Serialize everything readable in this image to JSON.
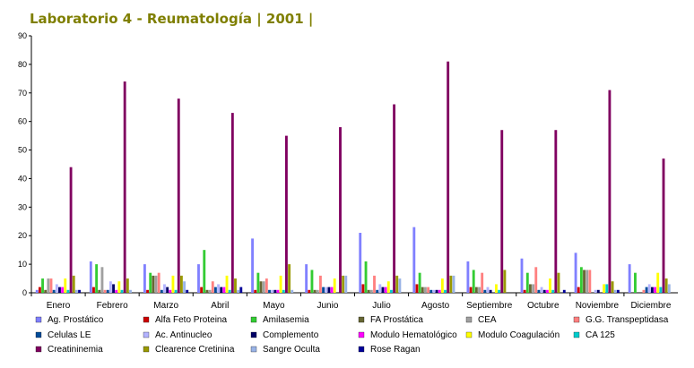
{
  "chart_data": {
    "type": "bar",
    "title": "Laboratorio 4 - Reumatología | 2001 |",
    "xlabel": "",
    "ylabel": "",
    "ylim": [
      0,
      90
    ],
    "yticks": [
      0,
      10,
      20,
      30,
      40,
      50,
      60,
      70,
      80,
      90
    ],
    "grid": false,
    "legend_position": "bottom",
    "categories": [
      "Enero",
      "Febrero",
      "Marzo",
      "Abril",
      "Mayo",
      "Junio",
      "Julio",
      "Agosto",
      "Septiembre",
      "Octubre",
      "Noviembre",
      "Diciembre"
    ],
    "series": [
      {
        "name": "Ag. Prostático",
        "color": "#8080ff",
        "values": [
          1,
          11,
          10,
          10,
          19,
          10,
          21,
          23,
          11,
          12,
          14,
          10
        ]
      },
      {
        "name": "Alfa Feto Proteina",
        "color": "#cc0000",
        "values": [
          2,
          2,
          1,
          2,
          1,
          1,
          3,
          3,
          2,
          1,
          2,
          0
        ]
      },
      {
        "name": "Amilasemia",
        "color": "#33cc33",
        "values": [
          5,
          10,
          7,
          15,
          7,
          8,
          11,
          7,
          8,
          7,
          9,
          7
        ]
      },
      {
        "name": "FA Prostática",
        "color": "#666633",
        "values": [
          1,
          1,
          6,
          1,
          4,
          1,
          1,
          2,
          2,
          3,
          8,
          0
        ]
      },
      {
        "name": "CEA",
        "color": "#a0a0a0",
        "values": [
          5,
          9,
          6,
          1,
          4,
          1,
          1,
          2,
          2,
          3,
          8,
          0
        ]
      },
      {
        "name": "G.G. Transpeptidasa",
        "color": "#ff8080",
        "values": [
          5,
          1,
          7,
          4,
          5,
          6,
          6,
          2,
          7,
          9,
          8,
          1
        ]
      },
      {
        "name": "Celulas LE",
        "color": "#004c99",
        "values": [
          1,
          1,
          1,
          2,
          1,
          2,
          1,
          1,
          1,
          1,
          0,
          2
        ]
      },
      {
        "name": "Ac. Antinucleo",
        "color": "#b3b3ff",
        "values": [
          3,
          4,
          3,
          3,
          1,
          2,
          3,
          1,
          2,
          2,
          1,
          3
        ]
      },
      {
        "name": "Complemento",
        "color": "#000066",
        "values": [
          2,
          3,
          2,
          2,
          1,
          2,
          2,
          1,
          1,
          1,
          1,
          2
        ]
      },
      {
        "name": "Modulo Hematológico",
        "color": "#ff00ff",
        "values": [
          2,
          1,
          1,
          2,
          1,
          2,
          2,
          1,
          0,
          1,
          0,
          2
        ]
      },
      {
        "name": "Modulo Coagulación",
        "color": "#ffff00",
        "values": [
          5,
          4,
          6,
          6,
          6,
          5,
          4,
          5,
          3,
          5,
          3,
          7
        ]
      },
      {
        "name": "CA 125",
        "color": "#00cccc",
        "values": [
          1,
          1,
          1,
          1,
          1,
          0,
          1,
          1,
          1,
          1,
          3,
          2
        ]
      },
      {
        "name": "Creatininemia",
        "color": "#800060",
        "values": [
          44,
          74,
          68,
          63,
          55,
          58,
          66,
          81,
          57,
          57,
          71,
          47
        ]
      },
      {
        "name": "Clearence Cretinina",
        "color": "#999900",
        "values": [
          6,
          5,
          6,
          5,
          10,
          6,
          6,
          6,
          8,
          7,
          4,
          5
        ]
      },
      {
        "name": "Sangre Oculta",
        "color": "#99b3e6",
        "values": [
          1,
          1,
          4,
          1,
          1,
          6,
          5,
          6,
          0,
          0,
          1,
          3
        ]
      },
      {
        "name": "Rose Ragan",
        "color": "#000099",
        "values": [
          1,
          0,
          1,
          2,
          0,
          0,
          0,
          0,
          0,
          1,
          1,
          0
        ]
      }
    ]
  }
}
